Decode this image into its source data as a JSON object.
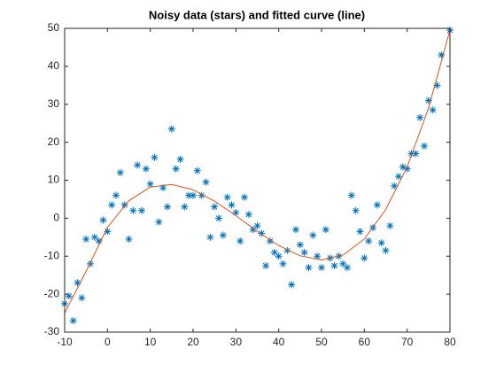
{
  "chart_data": {
    "type": "scatter",
    "title": "Noisy data (stars) and fitted curve (line)",
    "xlim": [
      -10,
      80
    ],
    "ylim": [
      -30,
      50
    ],
    "xticks": [
      -10,
      0,
      10,
      20,
      30,
      40,
      50,
      60,
      70,
      80
    ],
    "yticks": [
      -30,
      -20,
      -10,
      0,
      10,
      20,
      30,
      40,
      50
    ],
    "series": [
      {
        "type": "scatter",
        "marker": "*",
        "color": "#0072bd",
        "x": [
          -10,
          -9,
          -8,
          -7,
          -6,
          -5,
          -4,
          -3,
          -2,
          -1,
          0,
          1,
          2,
          3,
          4,
          5,
          6,
          7,
          8,
          9,
          10,
          11,
          12,
          13,
          14,
          15,
          16,
          17,
          18,
          19,
          20,
          21,
          22,
          23,
          24,
          25,
          26,
          27,
          28,
          29,
          30,
          31,
          32,
          33,
          34,
          35,
          36,
          37,
          38,
          39,
          40,
          41,
          42,
          43,
          44,
          45,
          46,
          47,
          48,
          49,
          50,
          51,
          52,
          53,
          54,
          55,
          56,
          57,
          58,
          59,
          60,
          61,
          62,
          63,
          64,
          65,
          66,
          67,
          68,
          69,
          70,
          71,
          72,
          73,
          74,
          75,
          76,
          77,
          78,
          80
        ],
        "values": [
          -22.5,
          -20.5,
          -27,
          -17,
          -21,
          -5.5,
          -12,
          -5,
          -6,
          -0.5,
          -3.5,
          3.5,
          6,
          12,
          3.5,
          -5.5,
          2,
          14,
          2,
          13,
          9,
          16,
          -1,
          8,
          3,
          23.5,
          13,
          15.5,
          3,
          6,
          6,
          12.5,
          6,
          9.5,
          -5,
          3,
          0,
          -4.5,
          5.5,
          3.5,
          1.5,
          -6,
          5.5,
          1,
          -3,
          -2,
          -4,
          -12.5,
          -6,
          -9,
          -10,
          -12,
          -8.5,
          -17.5,
          -3,
          -7,
          -9,
          -13,
          -4.5,
          -10,
          -13,
          -3,
          -10.5,
          -12.5,
          -10,
          -12,
          -13,
          6,
          2,
          -3.5,
          -10.5,
          -6,
          -2.5,
          3.5,
          -6.5,
          -8.5,
          -2,
          8.5,
          11,
          13.5,
          13,
          17,
          17,
          26.5,
          19,
          31,
          28.5,
          35,
          43,
          49.5
        ]
      },
      {
        "type": "line",
        "color": "#d95319",
        "x": [
          -10,
          -5,
          0,
          5,
          10,
          15,
          20,
          25,
          30,
          35,
          40,
          45,
          50,
          55,
          60,
          65,
          70,
          75,
          80
        ],
        "values": [
          -25,
          -14,
          -2.4,
          4.6,
          8.2,
          8.9,
          7.5,
          4.5,
          0.7,
          -3.5,
          -7.2,
          -9.9,
          -11,
          -9.7,
          -5.5,
          2.3,
          13.5,
          29,
          49.5
        ]
      }
    ]
  }
}
